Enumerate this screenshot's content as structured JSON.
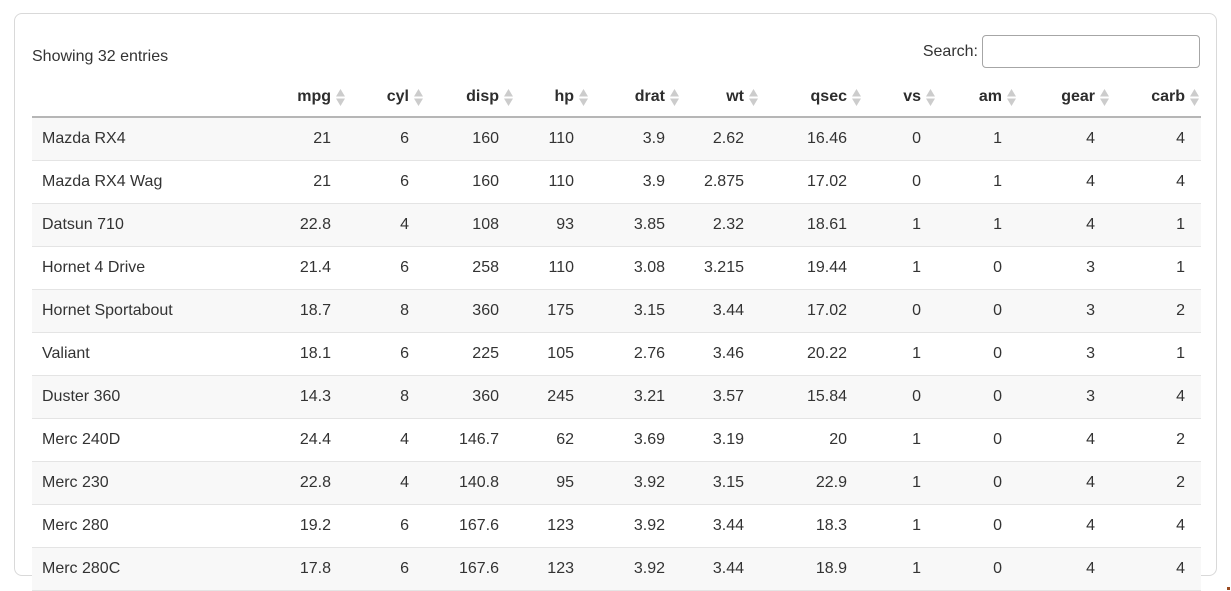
{
  "info": {
    "text": "Showing 32 entries"
  },
  "search": {
    "label": "Search:",
    "value": "",
    "placeholder": ""
  },
  "table": {
    "row_header_label": "",
    "columns": [
      {
        "label": "mpg",
        "sort_icon": "sort-diamond-icon"
      },
      {
        "label": "cyl",
        "sort_icon": "sort-diamond-icon"
      },
      {
        "label": "disp",
        "sort_icon": "sort-diamond-icon"
      },
      {
        "label": "hp",
        "sort_icon": "sort-diamond-icon"
      },
      {
        "label": "drat",
        "sort_icon": "sort-diamond-icon"
      },
      {
        "label": "wt",
        "sort_icon": "sort-diamond-icon"
      },
      {
        "label": "qsec",
        "sort_icon": "sort-diamond-icon"
      },
      {
        "label": "vs",
        "sort_icon": "sort-diamond-icon"
      },
      {
        "label": "am",
        "sort_icon": "sort-diamond-icon"
      },
      {
        "label": "gear",
        "sort_icon": "sort-diamond-icon"
      },
      {
        "label": "carb",
        "sort_icon": "sort-diamond-icon"
      }
    ],
    "rows": [
      {
        "name": "Mazda RX4",
        "values": [
          21,
          6,
          160,
          110,
          3.9,
          2.62,
          16.46,
          0,
          1,
          4,
          4
        ]
      },
      {
        "name": "Mazda RX4 Wag",
        "values": [
          21,
          6,
          160,
          110,
          3.9,
          2.875,
          17.02,
          0,
          1,
          4,
          4
        ]
      },
      {
        "name": "Datsun 710",
        "values": [
          22.8,
          4,
          108,
          93,
          3.85,
          2.32,
          18.61,
          1,
          1,
          4,
          1
        ]
      },
      {
        "name": "Hornet 4 Drive",
        "values": [
          21.4,
          6,
          258,
          110,
          3.08,
          3.215,
          19.44,
          1,
          0,
          3,
          1
        ]
      },
      {
        "name": "Hornet Sportabout",
        "values": [
          18.7,
          8,
          360,
          175,
          3.15,
          3.44,
          17.02,
          0,
          0,
          3,
          2
        ]
      },
      {
        "name": "Valiant",
        "values": [
          18.1,
          6,
          225,
          105,
          2.76,
          3.46,
          20.22,
          1,
          0,
          3,
          1
        ]
      },
      {
        "name": "Duster 360",
        "values": [
          14.3,
          8,
          360,
          245,
          3.21,
          3.57,
          15.84,
          0,
          0,
          3,
          4
        ]
      },
      {
        "name": "Merc 240D",
        "values": [
          24.4,
          4,
          146.7,
          62,
          3.69,
          3.19,
          20,
          1,
          0,
          4,
          2
        ]
      },
      {
        "name": "Merc 230",
        "values": [
          22.8,
          4,
          140.8,
          95,
          3.92,
          3.15,
          22.9,
          1,
          0,
          4,
          2
        ]
      },
      {
        "name": "Merc 280",
        "values": [
          19.2,
          6,
          167.6,
          123,
          3.92,
          3.44,
          18.3,
          1,
          0,
          4,
          4
        ]
      },
      {
        "name": "Merc 280C",
        "values": [
          17.8,
          6,
          167.6,
          123,
          3.92,
          3.44,
          18.9,
          1,
          0,
          4,
          4
        ]
      }
    ]
  },
  "colors": {
    "card_border": "#d9d9d9",
    "header_underline": "#b6b6b6",
    "row_divider": "#e4e4e4",
    "row_stripe": "#f8f8f8",
    "text": "#333333",
    "sort_icon": "#cccccc"
  }
}
